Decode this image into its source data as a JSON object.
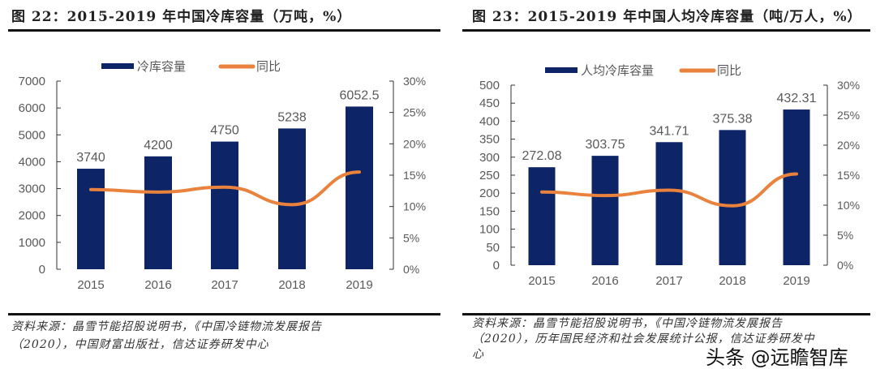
{
  "chart_data": [
    {
      "type": "bar",
      "title": "图 22：2015-2019 年中国冷库容量（万吨，%）",
      "categories": [
        "2015",
        "2016",
        "2017",
        "2018",
        "2019"
      ],
      "series": [
        {
          "name": "冷库容量",
          "axis": "left",
          "values": [
            3740,
            4200,
            4750,
            5238,
            6052.5
          ],
          "labels": [
            "3740",
            "4200",
            "4750",
            "5238",
            "6052.5"
          ],
          "color": "#0d2466"
        },
        {
          "name": "同比",
          "axis": "right",
          "type": "line",
          "values": [
            12.7,
            12.3,
            13.1,
            10.3,
            15.5
          ],
          "color": "#e8823d"
        }
      ],
      "ylim": [
        0,
        7000
      ],
      "yticks": [
        0,
        1000,
        2000,
        3000,
        4000,
        5000,
        6000,
        7000
      ],
      "y2lim": [
        0,
        30
      ],
      "y2ticks": [
        "0%",
        "5%",
        "10%",
        "15%",
        "20%",
        "25%",
        "30%"
      ],
      "legend": "top",
      "grid": false,
      "source": [
        "资料来源：晶雪节能招股说明书，《中国冷链物流发展报告",
        "（2020），中国财富出版社，信达证券研发中心"
      ]
    },
    {
      "type": "bar",
      "title": "图 23：2015-2019 年中国人均冷库容量（吨/万人，%）",
      "categories": [
        "2015",
        "2016",
        "2017",
        "2018",
        "2019"
      ],
      "series": [
        {
          "name": "人均冷库容量",
          "axis": "left",
          "values": [
            272.08,
            303.75,
            341.71,
            375.38,
            432.31
          ],
          "labels": [
            "272.08",
            "303.75",
            "341.71",
            "375.38",
            "432.31"
          ],
          "color": "#0d2466"
        },
        {
          "name": "同比",
          "axis": "right",
          "type": "line",
          "values": [
            12.2,
            11.6,
            12.5,
            9.9,
            15.2
          ],
          "color": "#e8823d"
        }
      ],
      "ylim": [
        0,
        500
      ],
      "yticks": [
        0,
        50,
        100,
        150,
        200,
        250,
        300,
        350,
        400,
        450,
        500
      ],
      "y2lim": [
        0,
        30
      ],
      "y2ticks": [
        "0%",
        "5%",
        "10%",
        "15%",
        "20%",
        "25%",
        "30%"
      ],
      "legend": "top",
      "grid": false,
      "source": [
        "资料来源：晶雪节能招股说明书，《中国冷链物流发展报告",
        "（2020），历年国民经济和社会发展统计公报，信达证券研发中",
        "心"
      ]
    }
  ],
  "watermark": "头条 @远瞻智库"
}
